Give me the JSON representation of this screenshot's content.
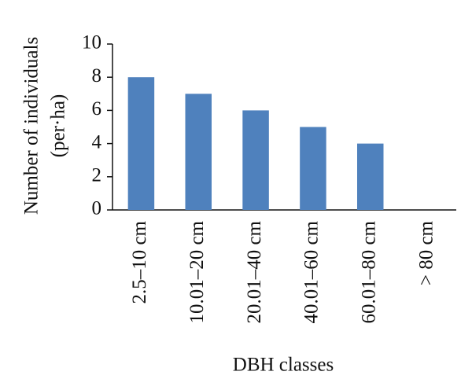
{
  "chart_data": {
    "type": "bar",
    "ylabel": [
      "Number of individuals",
      "(per·ha)"
    ],
    "xlabel": "DBH classes",
    "categories": [
      "2.5–10 cm",
      "10.01–20 cm",
      "20.01–40 cm",
      "40.01–60 cm",
      "60.01–80 cm",
      "> 80 cm"
    ],
    "values": [
      8,
      7,
      6,
      5,
      4,
      0
    ],
    "color": "#4f81bd",
    "ylim": [
      0,
      10
    ],
    "yticks": [
      0,
      2,
      4,
      6,
      8,
      10
    ],
    "grid": false
  }
}
